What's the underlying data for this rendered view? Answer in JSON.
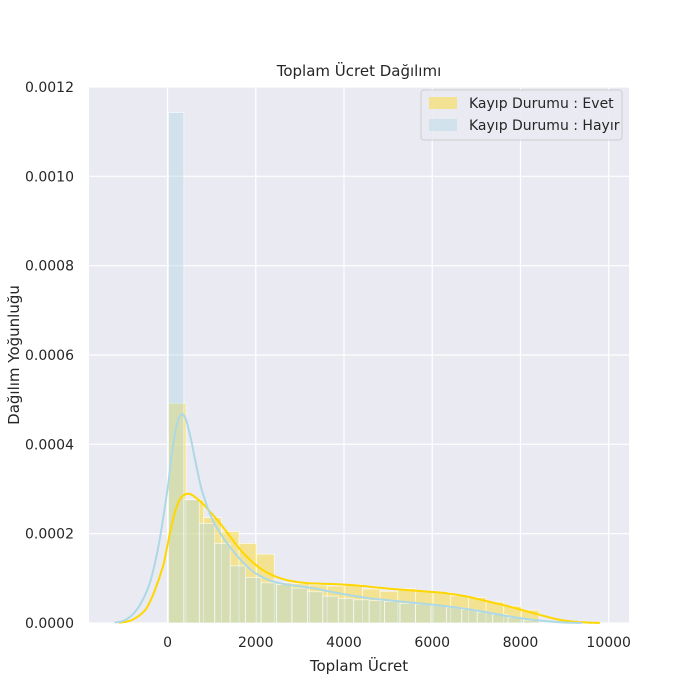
{
  "chart_data": {
    "type": "bar",
    "title": "Toplam Ücret Dağılımı",
    "xlabel": "Toplam Ücret",
    "ylabel": "Dağılım Yoğunluğu",
    "xlim": [
      -1780,
      10460
    ],
    "ylim": [
      0,
      0.0012
    ],
    "x_ticks": [
      0,
      2000,
      4000,
      6000,
      8000,
      10000
    ],
    "y_ticks": [
      0.0,
      0.0002,
      0.0004,
      0.0006,
      0.0008,
      0.001,
      0.0012
    ],
    "x_tick_labels": [
      "0",
      "2000",
      "4000",
      "6000",
      "8000",
      "10000"
    ],
    "y_tick_labels": [
      "0.0000",
      "0.0002",
      "0.0004",
      "0.0006",
      "0.0008",
      "0.0010",
      "0.0012"
    ],
    "grid": true,
    "legend_position": "top-right",
    "background": "#eaeaf2",
    "series": [
      {
        "name": "Kayıp Durumu : Evet",
        "color": "#ffd700",
        "hist_bins": [
          {
            "x0": 20,
            "x1": 420,
            "value": 0.000492
          },
          {
            "x0": 420,
            "x1": 820,
            "value": 0.000276
          },
          {
            "x0": 820,
            "x1": 1220,
            "value": 0.000236
          },
          {
            "x0": 1220,
            "x1": 1620,
            "value": 0.000205
          },
          {
            "x0": 1620,
            "x1": 2020,
            "value": 0.000178
          },
          {
            "x0": 2020,
            "x1": 2420,
            "value": 0.000154
          },
          {
            "x0": 2420,
            "x1": 2820,
            "value": 9e-05
          },
          {
            "x0": 2820,
            "x1": 3220,
            "value": 8.8e-05
          },
          {
            "x0": 3220,
            "x1": 3620,
            "value": 8.5e-05
          },
          {
            "x0": 3620,
            "x1": 4020,
            "value": 8.3e-05
          },
          {
            "x0": 4020,
            "x1": 4420,
            "value": 8.6e-05
          },
          {
            "x0": 4420,
            "x1": 4820,
            "value": 7.6e-05
          },
          {
            "x0": 4820,
            "x1": 5220,
            "value": 7.1e-05
          },
          {
            "x0": 5220,
            "x1": 5620,
            "value": 7.7e-05
          },
          {
            "x0": 5620,
            "x1": 6020,
            "value": 7e-05
          },
          {
            "x0": 6020,
            "x1": 6420,
            "value": 6.8e-05
          },
          {
            "x0": 6420,
            "x1": 6820,
            "value": 6.1e-05
          },
          {
            "x0": 6820,
            "x1": 7220,
            "value": 5.7e-05
          },
          {
            "x0": 7220,
            "x1": 7620,
            "value": 4.7e-05
          },
          {
            "x0": 7620,
            "x1": 8020,
            "value": 3.8e-05
          },
          {
            "x0": 8020,
            "x1": 8420,
            "value": 2.9e-05
          }
        ],
        "kde": {
          "x": [
            -1100,
            -800,
            -500,
            -300,
            -100,
            0,
            100,
            200,
            300,
            400,
            500,
            600,
            800,
            1000,
            1200,
            1400,
            1600,
            1800,
            2000,
            2200,
            2400,
            2600,
            2800,
            3000,
            3200,
            3500,
            3800,
            4000,
            4300,
            4600,
            5000,
            5400,
            5800,
            6200,
            6500,
            6800,
            7100,
            7400,
            7700,
            8000,
            8300,
            8600,
            8900,
            9200,
            9500,
            9800
          ],
          "y": [
            5e-07,
            7e-06,
            3e-05,
            7e-05,
            0.000128,
            0.000175,
            0.000222,
            0.000258,
            0.00028,
            0.000288,
            0.000289,
            0.000284,
            0.000267,
            0.000245,
            0.000222,
            0.000196,
            0.00017,
            0.000148,
            0.00013,
            0.000116,
            0.000106,
            9.9e-05,
            9.4e-05,
            9.1e-05,
            8.9e-05,
            8.8e-05,
            8.7e-05,
            8.6e-05,
            8.4e-05,
            8.1e-05,
            7.7e-05,
            7.4e-05,
            7.1e-05,
            6.8e-05,
            6.4e-05,
            5.9e-05,
            5.2e-05,
            4.5e-05,
            3.8e-05,
            3e-05,
            2.2e-05,
            1.4e-05,
            7e-06,
            3e-06,
            1e-06,
            2e-07
          ]
        }
      },
      {
        "name": "Kayıp Durumu : Hayır",
        "color": "#add8e6",
        "hist_bins": [
          {
            "x0": 20,
            "x1": 370,
            "value": 0.001143
          },
          {
            "x0": 370,
            "x1": 720,
            "value": 0.000276
          },
          {
            "x0": 720,
            "x1": 1070,
            "value": 0.000223
          },
          {
            "x0": 1070,
            "x1": 1420,
            "value": 0.000178
          },
          {
            "x0": 1420,
            "x1": 1770,
            "value": 0.000128
          },
          {
            "x0": 1770,
            "x1": 2120,
            "value": 0.000102
          },
          {
            "x0": 2120,
            "x1": 2470,
            "value": 9e-05
          },
          {
            "x0": 2470,
            "x1": 2820,
            "value": 8.6e-05
          },
          {
            "x0": 2820,
            "x1": 3170,
            "value": 7.8e-05
          },
          {
            "x0": 3170,
            "x1": 3520,
            "value": 7e-05
          },
          {
            "x0": 3520,
            "x1": 3870,
            "value": 6e-05
          },
          {
            "x0": 3870,
            "x1": 4220,
            "value": 5.5e-05
          },
          {
            "x0": 4220,
            "x1": 4570,
            "value": 5.2e-05
          },
          {
            "x0": 4570,
            "x1": 4920,
            "value": 5e-05
          },
          {
            "x0": 4920,
            "x1": 5270,
            "value": 4.8e-05
          },
          {
            "x0": 5270,
            "x1": 5620,
            "value": 4.4e-05
          },
          {
            "x0": 5620,
            "x1": 5970,
            "value": 4.2e-05
          },
          {
            "x0": 5970,
            "x1": 6320,
            "value": 3.9e-05
          },
          {
            "x0": 6320,
            "x1": 6670,
            "value": 3.5e-05
          },
          {
            "x0": 6670,
            "x1": 7020,
            "value": 3e-05
          },
          {
            "x0": 7020,
            "x1": 7370,
            "value": 2.4e-05
          },
          {
            "x0": 7370,
            "x1": 7720,
            "value": 1.9e-05
          },
          {
            "x0": 7720,
            "x1": 8070,
            "value": 1.2e-05
          },
          {
            "x0": 8070,
            "x1": 8420,
            "value": 6e-06
          }
        ],
        "kde": {
          "x": [
            -1200,
            -1000,
            -800,
            -600,
            -400,
            -200,
            0,
            100,
            200,
            300,
            400,
            500,
            600,
            700,
            800,
            1000,
            1200,
            1400,
            1600,
            1800,
            2000,
            2300,
            2600,
            3000,
            3400,
            3800,
            4200,
            4600,
            5000,
            5400,
            5800,
            6200,
            6600,
            7000,
            7400,
            7800,
            8200,
            8600,
            9000,
            9400
          ],
          "y": [
            1e-06,
            5e-06,
            1.8e-05,
            4.5e-05,
            9e-05,
            0.000175,
            0.0003,
            0.00038,
            0.00044,
            0.000466,
            0.00046,
            0.000425,
            0.000378,
            0.00033,
            0.00029,
            0.000235,
            0.0002,
            0.000172,
            0.000148,
            0.000127,
            0.000111,
            9.6e-05,
            8.8e-05,
            8.2e-05,
            7.6e-05,
            6.8e-05,
            6.1e-05,
            5.5e-05,
            5.1e-05,
            4.7e-05,
            4.3e-05,
            3.9e-05,
            3.4e-05,
            2.8e-05,
            2.1e-05,
            1.4e-05,
            8e-06,
            4e-06,
            1e-06,
            3e-07
          ]
        }
      }
    ]
  }
}
